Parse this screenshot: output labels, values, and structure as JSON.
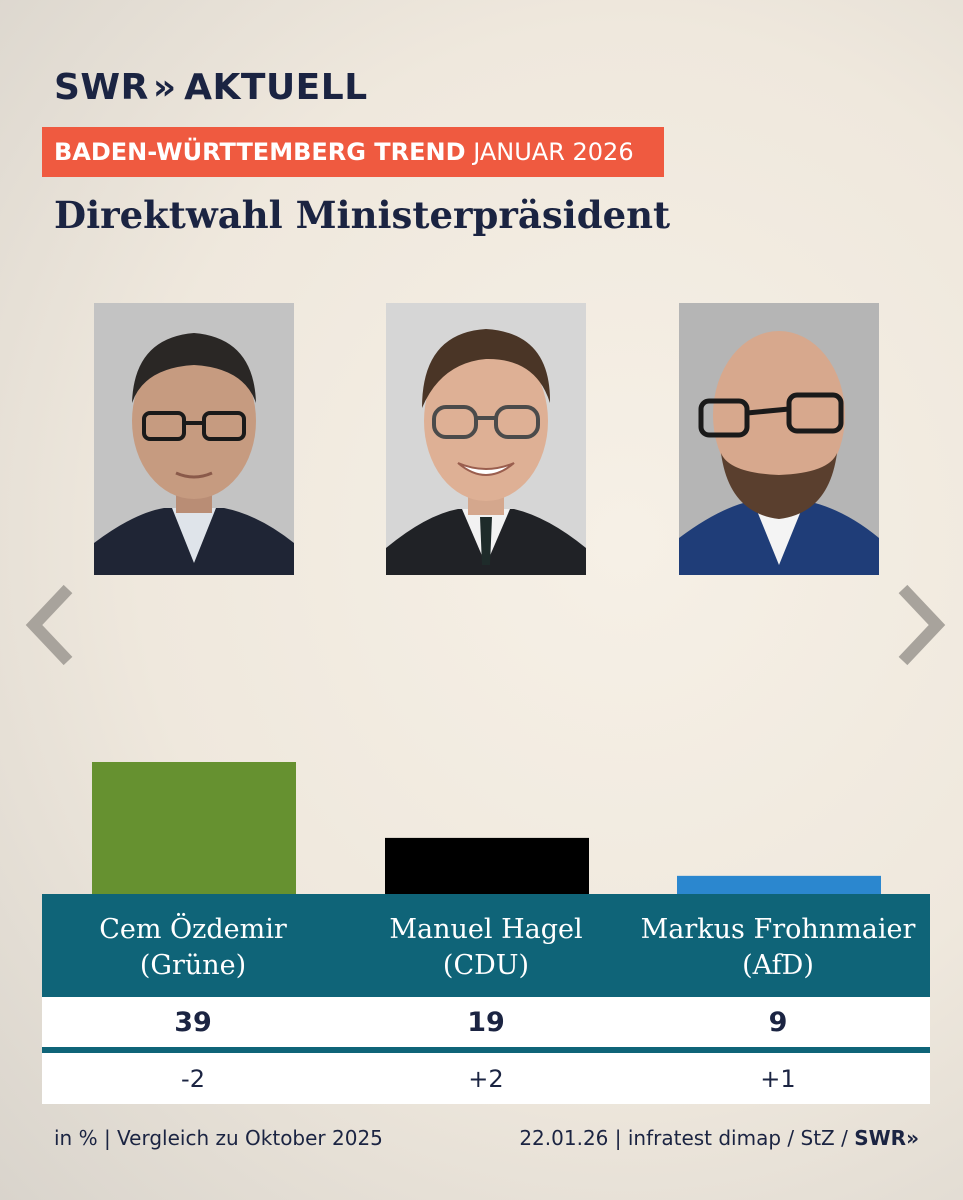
{
  "header": {
    "logo_text": "SWR",
    "logo_chevrons": "»",
    "logo_suffix": "AKTUELL",
    "banner_bold": "BADEN-WÜRTTEMBERG TREND",
    "banner_normal": "JANUAR 2026",
    "title": "Direktwahl Ministerpräsident"
  },
  "colors": {
    "banner": "#ef5a40",
    "teal": "#0f6478",
    "navy": "#1b2442"
  },
  "chart_data": {
    "type": "bar",
    "unit": "in %",
    "categories": [
      "Cem Özdemir (Grüne)",
      "Manuel Hagel (CDU)",
      "Markus Frohnmaier (AfD)"
    ],
    "values": [
      39,
      19,
      9
    ],
    "changes": [
      "-2",
      "+2",
      "+1"
    ],
    "bar_colors": [
      "#669130",
      "#000000",
      "#2b87cf"
    ],
    "ylim": [
      0,
      39
    ]
  },
  "candidates": [
    {
      "name": "Cem Özdemir",
      "party": "(Grüne)",
      "value": "39",
      "change": "-2"
    },
    {
      "name": "Manuel Hagel",
      "party": "(CDU)",
      "value": "19",
      "change": "+2"
    },
    {
      "name": "Markus Frohnmaier",
      "party": "(AfD)",
      "value": "9",
      "change": "+1"
    }
  ],
  "nav": {
    "prev_icon": "chevron-left-icon",
    "next_icon": "chevron-right-icon"
  },
  "footer": {
    "left": "in % | Vergleich zu Oktober 2025",
    "right_text": "22.01.26 | infratest dimap / StZ / ",
    "right_logo": "SWR»"
  }
}
